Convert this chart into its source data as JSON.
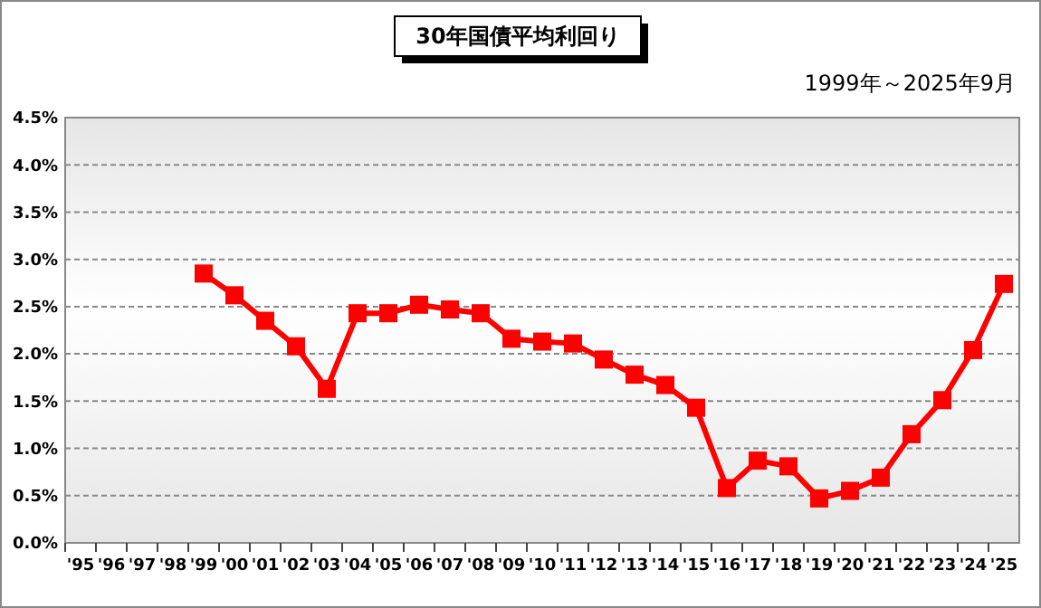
{
  "chart_data": {
    "type": "line",
    "title": "30年国債平均利回り",
    "subtitle": "1999年～2025年9月",
    "categories": [
      "'95",
      "'96",
      "'97",
      "'98",
      "'99",
      "'00",
      "'01",
      "'02",
      "'03",
      "'04",
      "'05",
      "'06",
      "'07",
      "'08",
      "'09",
      "'10",
      "'11",
      "'12",
      "'13",
      "'14",
      "'15",
      "'16",
      "'17",
      "'18",
      "'19",
      "'20",
      "'21",
      "'22",
      "'23",
      "'24",
      "'25"
    ],
    "series": [
      {
        "color": "#ff0000",
        "values": [
          null,
          null,
          null,
          null,
          2.85,
          2.62,
          2.35,
          2.08,
          1.63,
          2.43,
          2.43,
          2.52,
          2.47,
          2.43,
          2.16,
          2.13,
          2.11,
          1.94,
          1.78,
          1.67,
          1.43,
          0.58,
          0.87,
          0.81,
          0.47,
          0.55,
          0.69,
          1.15,
          1.51,
          2.04,
          2.74
        ]
      }
    ],
    "ylim": [
      0,
      4.5
    ],
    "yticks": [
      {
        "value": 0,
        "label": "0.0%"
      },
      {
        "value": 0.5,
        "label": "0.5%"
      },
      {
        "value": 1,
        "label": "1.0%"
      },
      {
        "value": 1.5,
        "label": "1.5%"
      },
      {
        "value": 2,
        "label": "2.0%"
      },
      {
        "value": 2.5,
        "label": "2.5%"
      },
      {
        "value": 3,
        "label": "3.0%"
      },
      {
        "value": 3.5,
        "label": "3.5%"
      },
      {
        "value": 4,
        "label": "4.0%"
      },
      {
        "value": 4.5,
        "label": "4.5%"
      }
    ],
    "grid": "y",
    "marker": "square",
    "line_style": "solid"
  }
}
